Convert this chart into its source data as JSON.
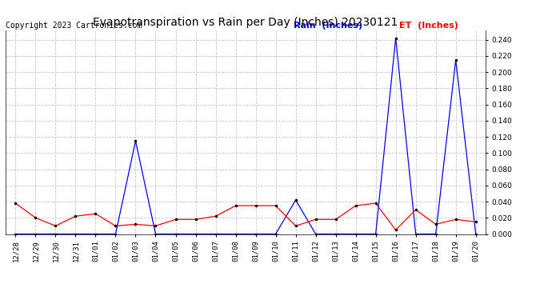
{
  "title": "Evapotranspiration vs Rain per Day (Inches) 20230121",
  "copyright": "Copyright 2023 Cartronics.com",
  "legend_rain": "Rain  (Inches)",
  "legend_et": "ET  (Inches)",
  "x_labels": [
    "12/28",
    "12/29",
    "12/30",
    "12/31",
    "01/01",
    "01/02",
    "01/03",
    "01/04",
    "01/05",
    "01/06",
    "01/07",
    "01/08",
    "01/09",
    "01/10",
    "01/11",
    "01/12",
    "01/13",
    "01/14",
    "01/15",
    "01/16",
    "01/17",
    "01/18",
    "01/19",
    "01/20"
  ],
  "rain_values": [
    0.0,
    0.0,
    0.0,
    0.0,
    0.0,
    0.0,
    0.115,
    0.0,
    0.0,
    0.0,
    0.0,
    0.0,
    0.0,
    0.0,
    0.042,
    0.0,
    0.0,
    0.0,
    0.0,
    0.242,
    0.0,
    0.0,
    0.215,
    0.0
  ],
  "et_values": [
    0.038,
    0.02,
    0.01,
    0.022,
    0.025,
    0.01,
    0.012,
    0.01,
    0.018,
    0.018,
    0.022,
    0.035,
    0.035,
    0.035,
    0.01,
    0.018,
    0.018,
    0.035,
    0.038,
    0.005,
    0.03,
    0.012,
    0.018,
    0.015
  ],
  "rain_color": "#0000ff",
  "et_color": "#ff0000",
  "background_color": "#ffffff",
  "grid_color": "#c8c8c8",
  "ylim": [
    0.0,
    0.252
  ],
  "yticks": [
    0.0,
    0.02,
    0.04,
    0.06,
    0.08,
    0.1,
    0.12,
    0.14,
    0.16,
    0.18,
    0.2,
    0.22,
    0.24
  ],
  "title_fontsize": 10,
  "copyright_fontsize": 7,
  "legend_fontsize": 8,
  "tick_fontsize": 6.5,
  "markersize": 3,
  "linewidth": 0.9,
  "fig_width": 6.9,
  "fig_height": 3.75,
  "fig_dpi": 100
}
